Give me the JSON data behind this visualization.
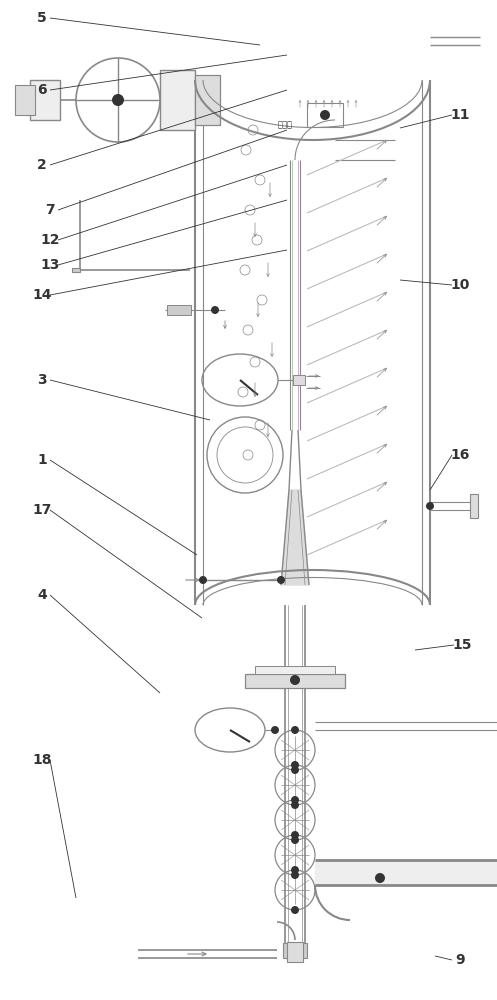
{
  "bg_color": "#ffffff",
  "lc": "#888888",
  "dc": "#333333",
  "llc": "#bbbbbb",
  "green": "#99cc99",
  "purple": "#cc99cc",
  "figsize": [
    4.97,
    10.0
  ],
  "dpi": 100
}
